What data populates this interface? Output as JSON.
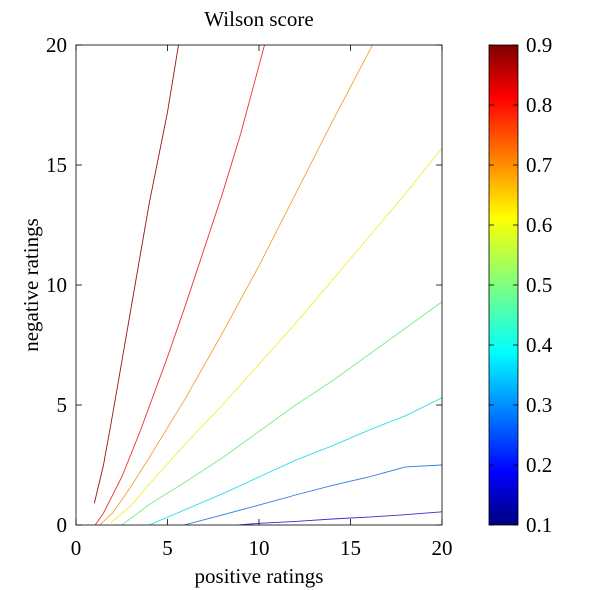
{
  "chart_data": {
    "type": "contour",
    "title": "Wilson score",
    "xlabel": "positive ratings",
    "ylabel": "negative ratings",
    "xlim": [
      0,
      20
    ],
    "ylim": [
      0,
      20
    ],
    "x_ticks": [
      "0",
      "5",
      "10",
      "15",
      "20"
    ],
    "y_ticks": [
      "0",
      "5",
      "10",
      "15",
      "20"
    ],
    "grid": false,
    "colorbar": {
      "range": [
        0.1,
        0.9
      ],
      "ticks": [
        "0.1",
        "0.2",
        "0.3",
        "0.4",
        "0.5",
        "0.6",
        "0.7",
        "0.8",
        "0.9"
      ],
      "placement": "right"
    },
    "series": [
      {
        "level": 0.2,
        "color": "#3a2bd6",
        "points": [
          [
            8.9,
            0
          ],
          [
            10,
            0.07
          ],
          [
            12,
            0.15
          ],
          [
            14,
            0.25
          ],
          [
            16,
            0.33
          ],
          [
            18,
            0.43
          ],
          [
            20,
            0.55
          ]
        ]
      },
      {
        "level": 0.3,
        "color": "#2a7fe0",
        "points": [
          [
            5.9,
            0
          ],
          [
            8,
            0.42
          ],
          [
            10,
            0.83
          ],
          [
            12,
            1.25
          ],
          [
            14,
            1.65
          ],
          [
            16,
            2.0
          ],
          [
            18,
            2.42
          ],
          [
            20,
            2.5
          ]
        ]
      },
      {
        "level": 0.4,
        "color": "#30dcec",
        "points": [
          [
            4.0,
            0
          ],
          [
            6,
            0.65
          ],
          [
            8,
            1.3
          ],
          [
            10,
            2.0
          ],
          [
            12,
            2.7
          ],
          [
            14,
            3.3
          ],
          [
            16,
            3.95
          ],
          [
            18,
            4.55
          ],
          [
            20,
            5.3
          ]
        ]
      },
      {
        "level": 0.5,
        "color": "#7ceb8a",
        "points": [
          [
            2.5,
            0
          ],
          [
            4,
            0.85
          ],
          [
            6,
            1.8
          ],
          [
            8,
            2.8
          ],
          [
            10,
            3.9
          ],
          [
            12,
            5.0
          ],
          [
            14,
            6.0
          ],
          [
            16,
            7.1
          ],
          [
            18,
            8.2
          ],
          [
            20,
            9.3
          ]
        ]
      },
      {
        "level": 0.6,
        "color": "#f2f03a",
        "points": [
          [
            1.9,
            0.1
          ],
          [
            3,
            0.8
          ],
          [
            4,
            1.7
          ],
          [
            6,
            3.4
          ],
          [
            8,
            5.0
          ],
          [
            10,
            6.7
          ],
          [
            12,
            8.4
          ],
          [
            14,
            10.2
          ],
          [
            16,
            12.0
          ],
          [
            18,
            13.8
          ],
          [
            20,
            15.7
          ]
        ]
      },
      {
        "level": 0.7,
        "color": "#f4a338",
        "points": [
          [
            1.3,
            0
          ],
          [
            2,
            0.5
          ],
          [
            3,
            1.6
          ],
          [
            4,
            2.8
          ],
          [
            6,
            5.3
          ],
          [
            8,
            8.0
          ],
          [
            10,
            10.8
          ],
          [
            12,
            13.8
          ],
          [
            14,
            16.8
          ],
          [
            16.2,
            20
          ]
        ]
      },
      {
        "level": 0.8,
        "color": "#ee3030",
        "points": [
          [
            1.05,
            0
          ],
          [
            1.5,
            0.5
          ],
          [
            2.5,
            2.0
          ],
          [
            3.5,
            3.9
          ],
          [
            5,
            7.0
          ],
          [
            6,
            9.2
          ],
          [
            7,
            11.5
          ],
          [
            8,
            13.8
          ],
          [
            9,
            16.3
          ],
          [
            10.3,
            20
          ]
        ]
      },
      {
        "level": 0.9,
        "color": "#9a1414",
        "points": [
          [
            1.0,
            0.9
          ],
          [
            1.5,
            2.5
          ],
          [
            2,
            4.6
          ],
          [
            3,
            9.0
          ],
          [
            4,
            13.4
          ],
          [
            5,
            17.2
          ],
          [
            5.6,
            20
          ]
        ]
      }
    ]
  }
}
